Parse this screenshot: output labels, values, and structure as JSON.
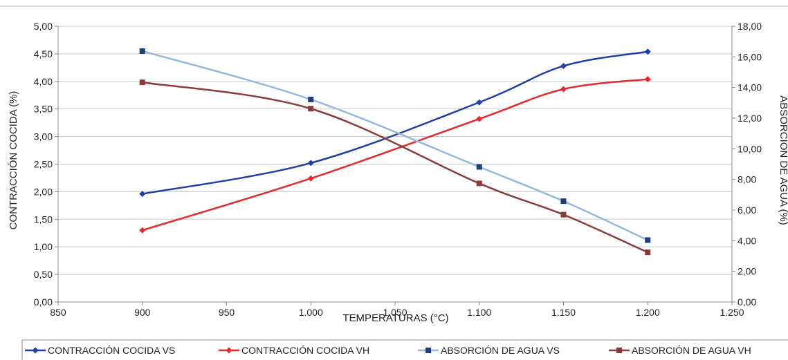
{
  "chart_data": {
    "type": "line",
    "xlabel": "TEMPERATURAS (°C)",
    "ylabel_left": "CONTRACCIÓN COCIDA (%)",
    "ylabel_right": "ABSORCIÓN DE AGUA (%)",
    "xlim": [
      850,
      1250
    ],
    "ylim_left": [
      0,
      5
    ],
    "ylim_right": [
      0,
      18
    ],
    "x_ticks": [
      850,
      900,
      950,
      1000,
      1050,
      1100,
      1150,
      1200,
      1250
    ],
    "x_tick_labels": [
      "850",
      "900",
      "950",
      "1.000",
      "1.050",
      "1.100",
      "1.150",
      "1.200",
      "1.250"
    ],
    "y_left_ticks": [
      0,
      0.5,
      1,
      1.5,
      2,
      2.5,
      3,
      3.5,
      4,
      4.5,
      5
    ],
    "y_left_tick_labels": [
      "0,00",
      "0,50",
      "1,00",
      "1,50",
      "2,00",
      "2,50",
      "3,00",
      "3,50",
      "4,00",
      "4,50",
      "5,00"
    ],
    "y_right_ticks": [
      0,
      2,
      4,
      6,
      8,
      10,
      12,
      14,
      16,
      18
    ],
    "y_right_tick_labels": [
      "0,00",
      "2,00",
      "4,00",
      "6,00",
      "8,00",
      "10,00",
      "12,00",
      "14,00",
      "16,00",
      "18,00"
    ],
    "grid": true,
    "legend_position": "bottom",
    "series": [
      {
        "name": "CONTRACCIÓN COCIDA VS",
        "axis": "left",
        "color": "#1f3fa8",
        "marker": "diamond",
        "x": [
          900,
          1000,
          1100,
          1150,
          1200
        ],
        "y": [
          1.96,
          2.52,
          3.62,
          4.28,
          4.54
        ]
      },
      {
        "name": "CONTRACCIÓN COCIDA VH",
        "axis": "left",
        "color": "#e8282b",
        "marker": "diamond",
        "x": [
          900,
          1000,
          1100,
          1150,
          1200
        ],
        "y": [
          1.3,
          2.24,
          3.32,
          3.86,
          4.04
        ]
      },
      {
        "name": "ABSORCIÓN DE AGUA VS",
        "axis": "right",
        "color": "#93b7df",
        "marker": "square",
        "marker_color": "#1f3f7a",
        "x": [
          900,
          1000,
          1100,
          1150,
          1200
        ],
        "y": [
          16.38,
          13.22,
          8.82,
          6.58,
          4.04
        ]
      },
      {
        "name": "ABSORCIÓN DE AGUA VH",
        "axis": "right",
        "color": "#8b3a3a",
        "marker": "square",
        "marker_color": "#8b3a3a",
        "x": [
          900,
          1000,
          1100,
          1150,
          1200
        ],
        "y": [
          14.34,
          12.62,
          7.74,
          5.7,
          3.24
        ]
      }
    ]
  }
}
